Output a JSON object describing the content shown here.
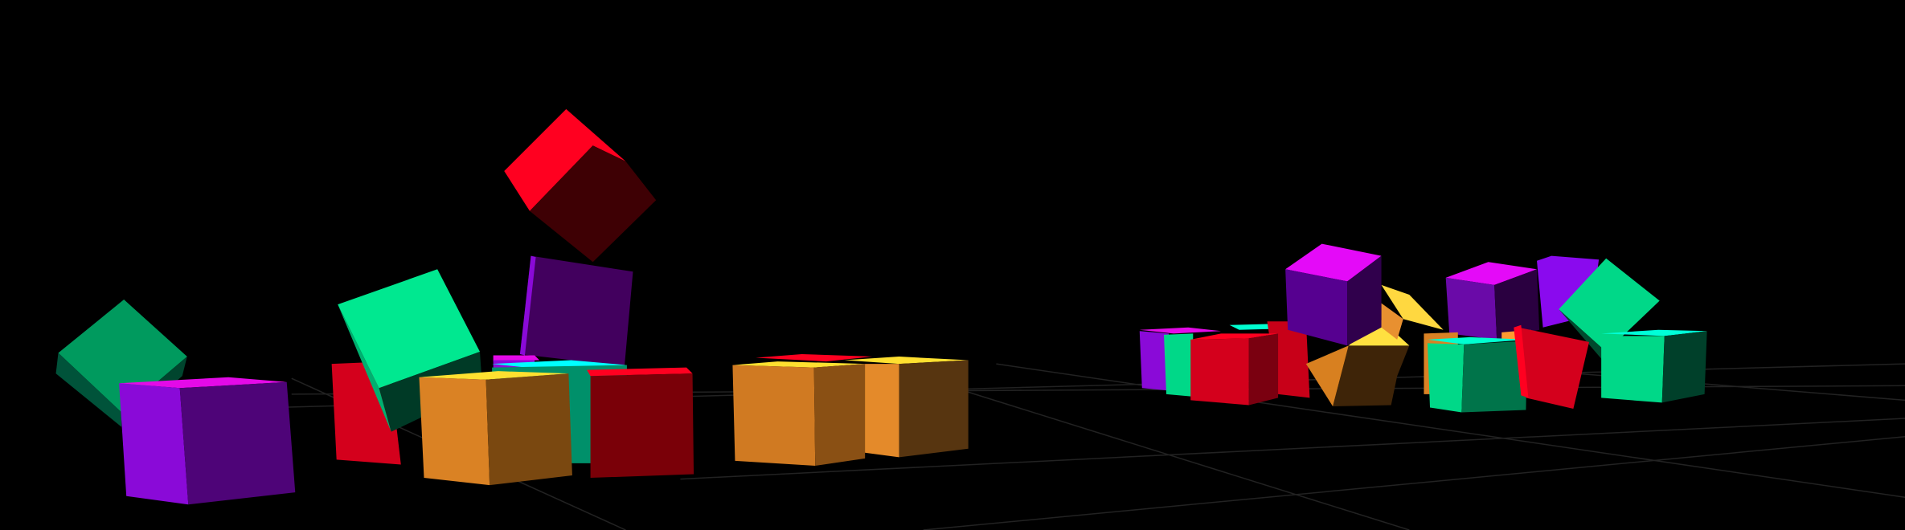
{
  "scene": {
    "background": "#000000",
    "grid_color": "#222222",
    "palette": {
      "purple": "#8a0ad8",
      "magenta": "#e40ae8",
      "red": "#d4001c",
      "bright_red": "#ff0020",
      "green": "#00e890",
      "dark_green": "#009a5e",
      "orange": "#da8224",
      "yellow": "#ffe030",
      "cyan": "#00ffff"
    }
  }
}
